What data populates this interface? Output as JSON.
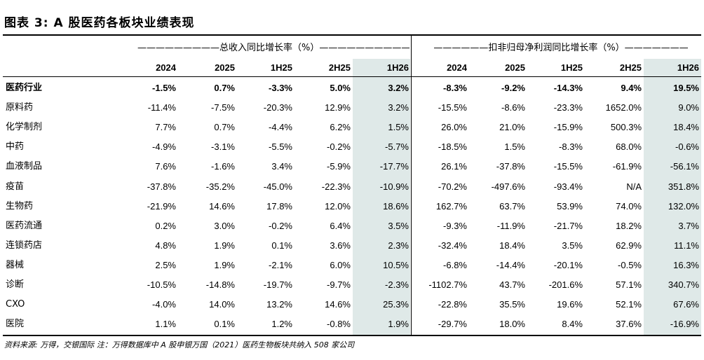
{
  "title": "图表 3: A 股医药各板块业绩表现",
  "group_headers": {
    "revenue": "—————————总收入同比增长率（%）——————————",
    "profit": "——————扣非归母净利润同比增长率（%）———————"
  },
  "columns": [
    "2024",
    "2025",
    "1H25",
    "2H25",
    "1H26",
    "2024",
    "2025",
    "1H25",
    "2H25",
    "1H26"
  ],
  "rows": [
    {
      "label": "医药行业",
      "values": [
        "-1.5%",
        "0.7%",
        "-3.3%",
        "5.0%",
        "3.2%",
        "-8.3%",
        "-9.2%",
        "-14.3%",
        "9.4%",
        "19.5%"
      ]
    },
    {
      "label": "原料药",
      "values": [
        "-11.4%",
        "-7.5%",
        "-20.3%",
        "12.9%",
        "3.2%",
        "-15.5%",
        "-8.6%",
        "-23.3%",
        "1652.0%",
        "9.0%"
      ]
    },
    {
      "label": "化学制剂",
      "values": [
        "7.7%",
        "0.7%",
        "-4.4%",
        "6.2%",
        "1.5%",
        "26.0%",
        "21.0%",
        "-15.9%",
        "500.3%",
        "18.4%"
      ]
    },
    {
      "label": "中药",
      "values": [
        "-4.9%",
        "-3.1%",
        "-5.5%",
        "-0.2%",
        "-5.7%",
        "-18.5%",
        "1.5%",
        "-8.3%",
        "68.0%",
        "-0.6%"
      ]
    },
    {
      "label": "血液制品",
      "values": [
        "7.6%",
        "-1.6%",
        "3.4%",
        "-5.9%",
        "-17.7%",
        "26.1%",
        "-37.8%",
        "-15.5%",
        "-61.9%",
        "-56.1%"
      ]
    },
    {
      "label": "疫苗",
      "values": [
        "-37.8%",
        "-35.2%",
        "-45.0%",
        "-22.3%",
        "-10.9%",
        "-70.2%",
        "-497.6%",
        "-93.4%",
        "N/A",
        "351.8%"
      ]
    },
    {
      "label": "生物药",
      "values": [
        "-21.9%",
        "14.6%",
        "17.8%",
        "12.0%",
        "18.6%",
        "162.7%",
        "63.7%",
        "53.9%",
        "74.0%",
        "132.0%"
      ]
    },
    {
      "label": "医药流通",
      "values": [
        "0.2%",
        "3.0%",
        "-0.2%",
        "6.4%",
        "3.5%",
        "-9.3%",
        "-11.9%",
        "-21.7%",
        "18.2%",
        "3.7%"
      ]
    },
    {
      "label": "连锁药店",
      "values": [
        "4.8%",
        "1.9%",
        "0.1%",
        "3.6%",
        "2.3%",
        "-32.4%",
        "18.4%",
        "3.5%",
        "62.9%",
        "11.1%"
      ]
    },
    {
      "label": "器械",
      "values": [
        "2.5%",
        "1.9%",
        "-2.1%",
        "6.0%",
        "10.5%",
        "-6.8%",
        "-14.4%",
        "-20.1%",
        "-0.5%",
        "16.3%"
      ]
    },
    {
      "label": "诊断",
      "values": [
        "-10.5%",
        "-14.8%",
        "-19.7%",
        "-9.7%",
        "-2.3%",
        "-1102.7%",
        "43.7%",
        "-201.6%",
        "57.1%",
        "340.7%"
      ]
    },
    {
      "label": "CXO",
      "values": [
        "-4.0%",
        "14.0%",
        "13.2%",
        "14.6%",
        "25.3%",
        "-22.8%",
        "35.5%",
        "19.6%",
        "52.1%",
        "67.6%"
      ]
    },
    {
      "label": "医院",
      "values": [
        "1.1%",
        "0.1%",
        "1.2%",
        "-0.8%",
        "1.9%",
        "-29.7%",
        "18.0%",
        "8.4%",
        "37.6%",
        "-16.9%"
      ]
    }
  ],
  "source": "资料来源: 万得，交银国际  注：万得数据库中 A 股申银万国（2021）医药生物板块共纳入 508 家公司",
  "colors": {
    "highlight": "#dfe9e8",
    "text": "#000000"
  }
}
